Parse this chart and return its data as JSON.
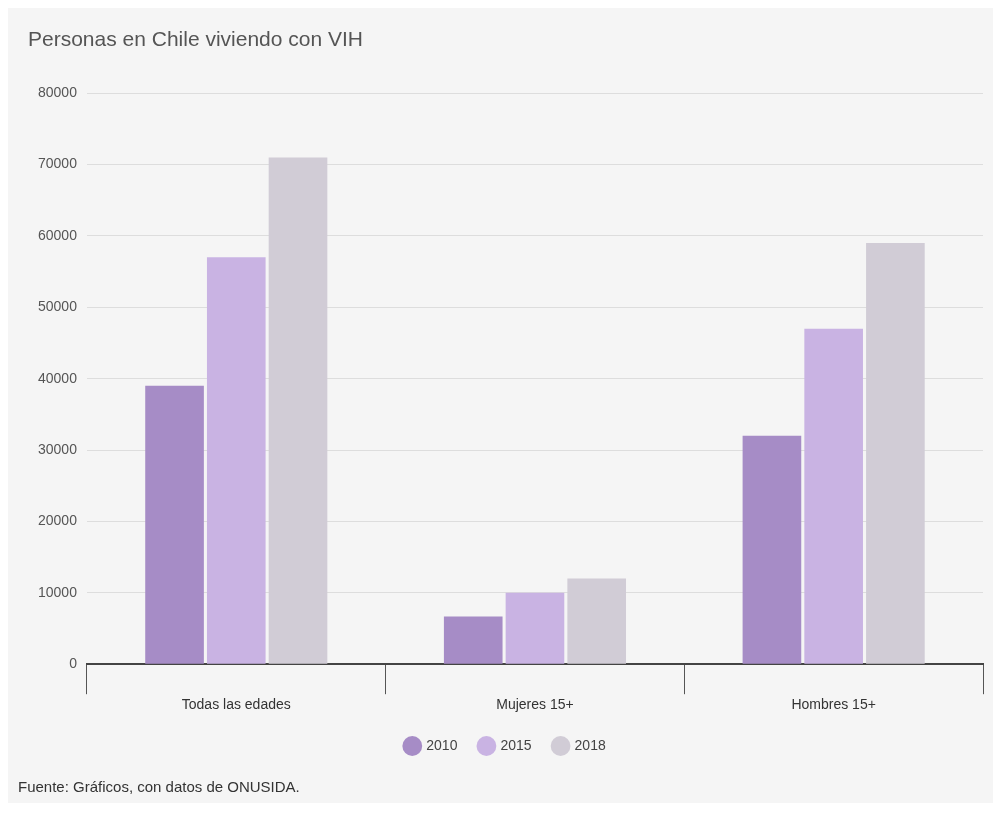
{
  "chart_data": {
    "type": "bar",
    "title": "Personas en Chile viviendo con VIH",
    "categories": [
      "Todas las edades",
      "Mujeres 15+",
      "Hombres 15+"
    ],
    "series": [
      {
        "name": "2010",
        "color": "#a68cc6",
        "values": [
          39000,
          6700,
          32000
        ]
      },
      {
        "name": "2015",
        "color": "#c9b3e3",
        "values": [
          57000,
          10000,
          47000
        ]
      },
      {
        "name": "2018",
        "color": "#d1ccd6",
        "values": [
          71000,
          12000,
          59000
        ]
      }
    ],
    "ylim": [
      0,
      80000
    ],
    "yticks": [
      0,
      10000,
      20000,
      30000,
      40000,
      50000,
      60000,
      70000,
      80000
    ],
    "grid": "y",
    "legend": "bottom",
    "annotations": [
      "Fuente: Gráficos, con datos de ONUSIDA."
    ]
  }
}
